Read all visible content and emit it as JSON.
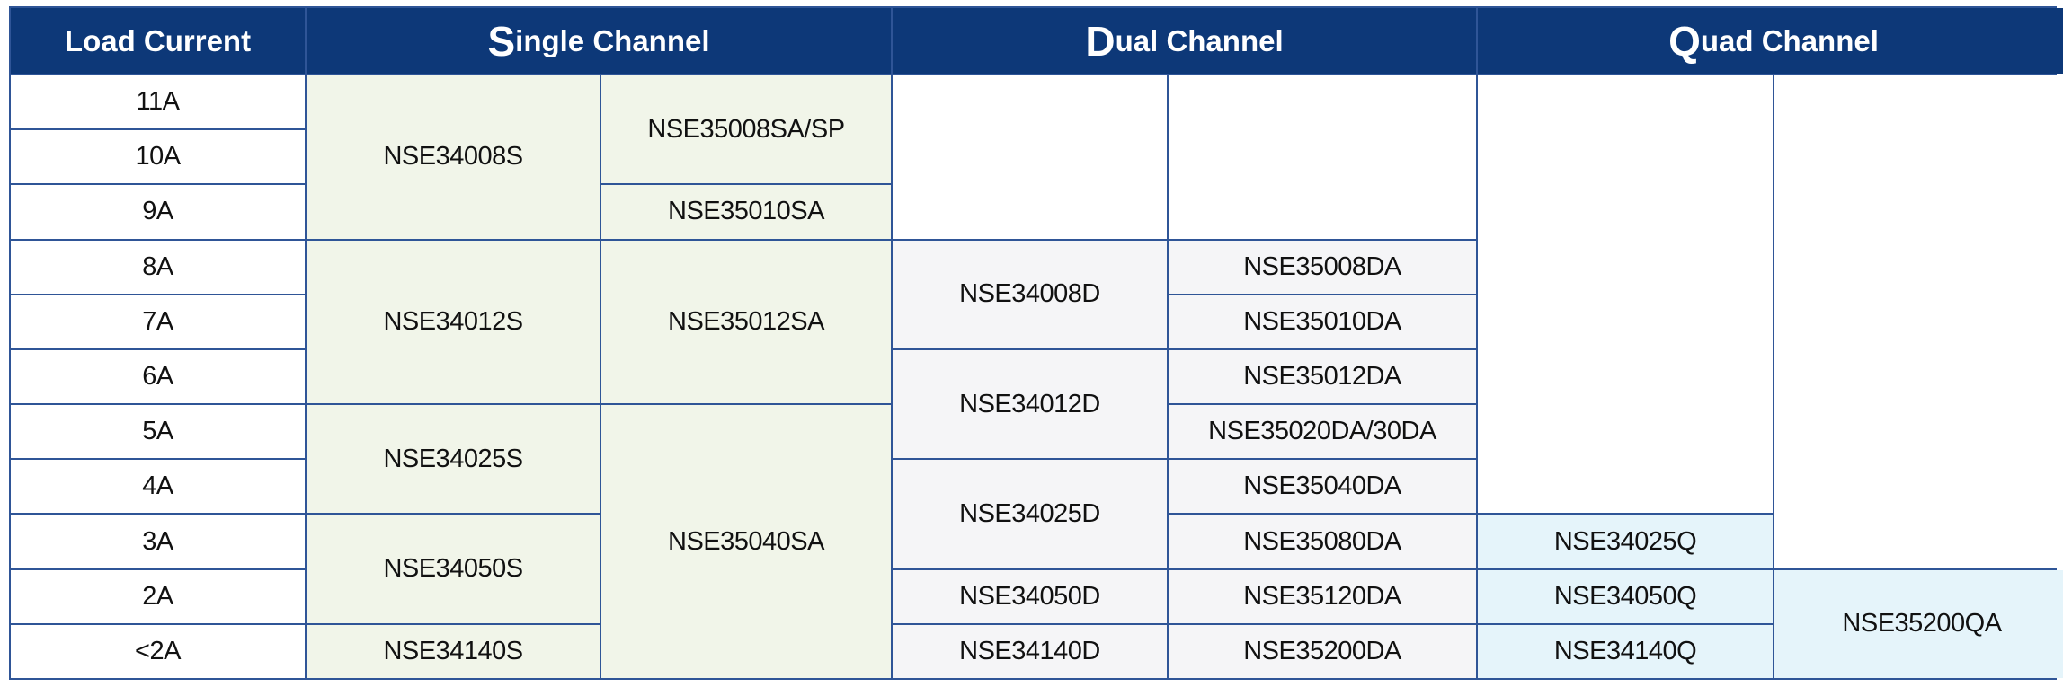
{
  "header": {
    "load_current": "Load Current",
    "single": {
      "initial": "S",
      "rest": "ingle Channel"
    },
    "dual": {
      "initial": "D",
      "rest": "ual Channel"
    },
    "quad": {
      "initial": "Q",
      "rest": "uad Channel"
    }
  },
  "load_currents": [
    "11A",
    "10A",
    "9A",
    "8A",
    "7A",
    "6A",
    "5A",
    "4A",
    "3A",
    "2A",
    "<2A"
  ],
  "single_channel": {
    "col1": [
      "NSE34008S",
      "NSE34012S",
      "NSE34025S",
      "NSE34050S",
      "NSE34140S"
    ],
    "col2": [
      "NSE35008SA/SP",
      "NSE35010SA",
      "NSE35012SA",
      "NSE35040SA"
    ]
  },
  "dual_channel": {
    "col1": [
      "NSE34008D",
      "NSE34012D",
      "NSE34025D",
      "NSE34050D",
      "NSE34140D"
    ],
    "col2": [
      "NSE35008DA",
      "NSE35010DA",
      "NSE35012DA",
      "NSE35020DA/30DA",
      "NSE35040DA",
      "NSE35080DA",
      "NSE35120DA",
      "NSE35200DA"
    ]
  },
  "quad_channel": {
    "col1": [
      "NSE34025Q",
      "NSE34050Q",
      "NSE34140Q"
    ],
    "col2": [
      "NSE35200QA"
    ]
  },
  "colors": {
    "header": "#0d3878",
    "border": "#2f5597",
    "single": "#f1f5e9",
    "dual": "#f5f5f7",
    "quad": "#e5f4fa"
  }
}
